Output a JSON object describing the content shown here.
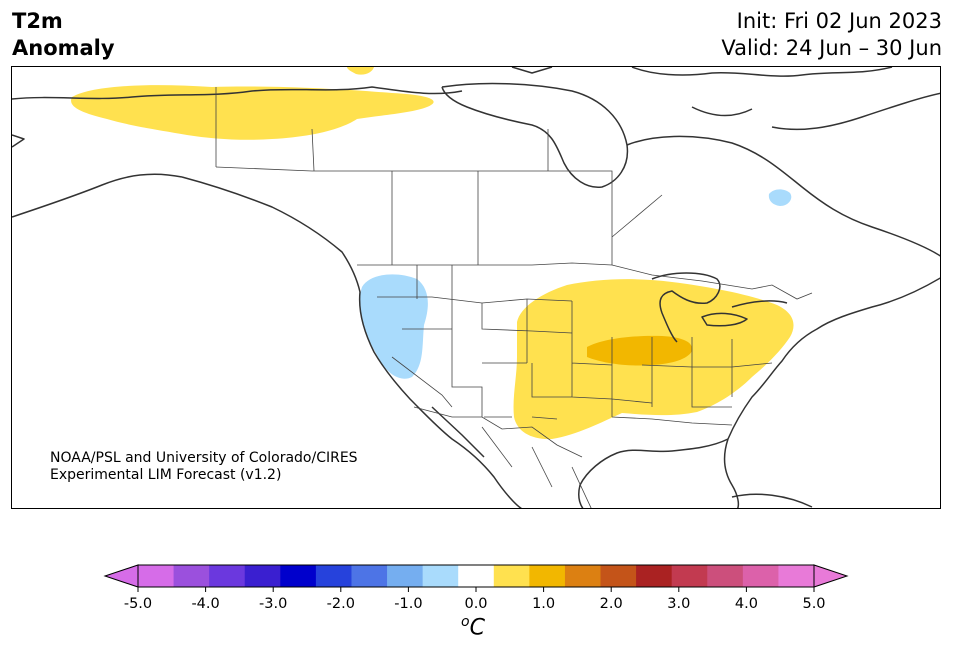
{
  "header": {
    "title_line1": "T2m",
    "title_line2": "Anomaly",
    "init": "Init: Fri 02 Jun 2023",
    "valid": "Valid: 24 Jun – 30 Jun"
  },
  "credit": {
    "line1": "NOAA/PSL and University of Colorado/CIRES",
    "line2": "Experimental LIM Forecast (v1.2)"
  },
  "colorbar": {
    "unit_base": "C",
    "unit_sup": "o",
    "levels": [
      -5.0,
      -4.5,
      -4.0,
      -3.5,
      -3.0,
      -2.5,
      -2.0,
      -1.5,
      -1.0,
      -0.5,
      0.5,
      1.0,
      1.5,
      2.0,
      2.5,
      3.0,
      3.5,
      4.0,
      4.5,
      5.0
    ],
    "colors": [
      "#d66ce8",
      "#9b50dd",
      "#6b38de",
      "#3a1fd0",
      "#0000cc",
      "#2642dc",
      "#4d74e6",
      "#75aef0",
      "#a9dbfc",
      "#ffffff",
      "#ffe14f",
      "#f2b700",
      "#dc8012",
      "#c45419",
      "#aa2222",
      "#c23a50",
      "#cc4f7c",
      "#dc61aa",
      "#e87ad8"
    ],
    "under_color": "#d66ce8",
    "over_color": "#e87ad8",
    "tick_labels": [
      "-5.0",
      "-4.0",
      "-3.0",
      "-2.0",
      "-1.0",
      "0.0",
      "1.0",
      "2.0",
      "3.0",
      "4.0",
      "5.0"
    ],
    "tick_values": [
      -5,
      -4,
      -3,
      -2,
      -1,
      0,
      1,
      2,
      3,
      4,
      5
    ]
  },
  "map": {
    "region": "North America",
    "variable": "2m temperature anomaly",
    "anomaly_areas": [
      {
        "region": "northern Canada",
        "sign": "warm",
        "level": "0.5 to 1.0",
        "color": "#ffe14f"
      },
      {
        "region": "US Plains, Midwest and East",
        "sign": "warm",
        "level": "0.5 to 1.0",
        "color": "#ffe14f"
      },
      {
        "region": "Ohio Valley",
        "sign": "warm",
        "level": "1.0 to 1.5",
        "color": "#f2b700"
      },
      {
        "region": "US Pacific Northwest",
        "sign": "cool",
        "level": "-1.0 to -0.5",
        "color": "#a9dbfc"
      },
      {
        "region": "Quebec",
        "sign": "cool",
        "level": "-1.0 to -0.5",
        "color": "#a9dbfc"
      }
    ]
  }
}
